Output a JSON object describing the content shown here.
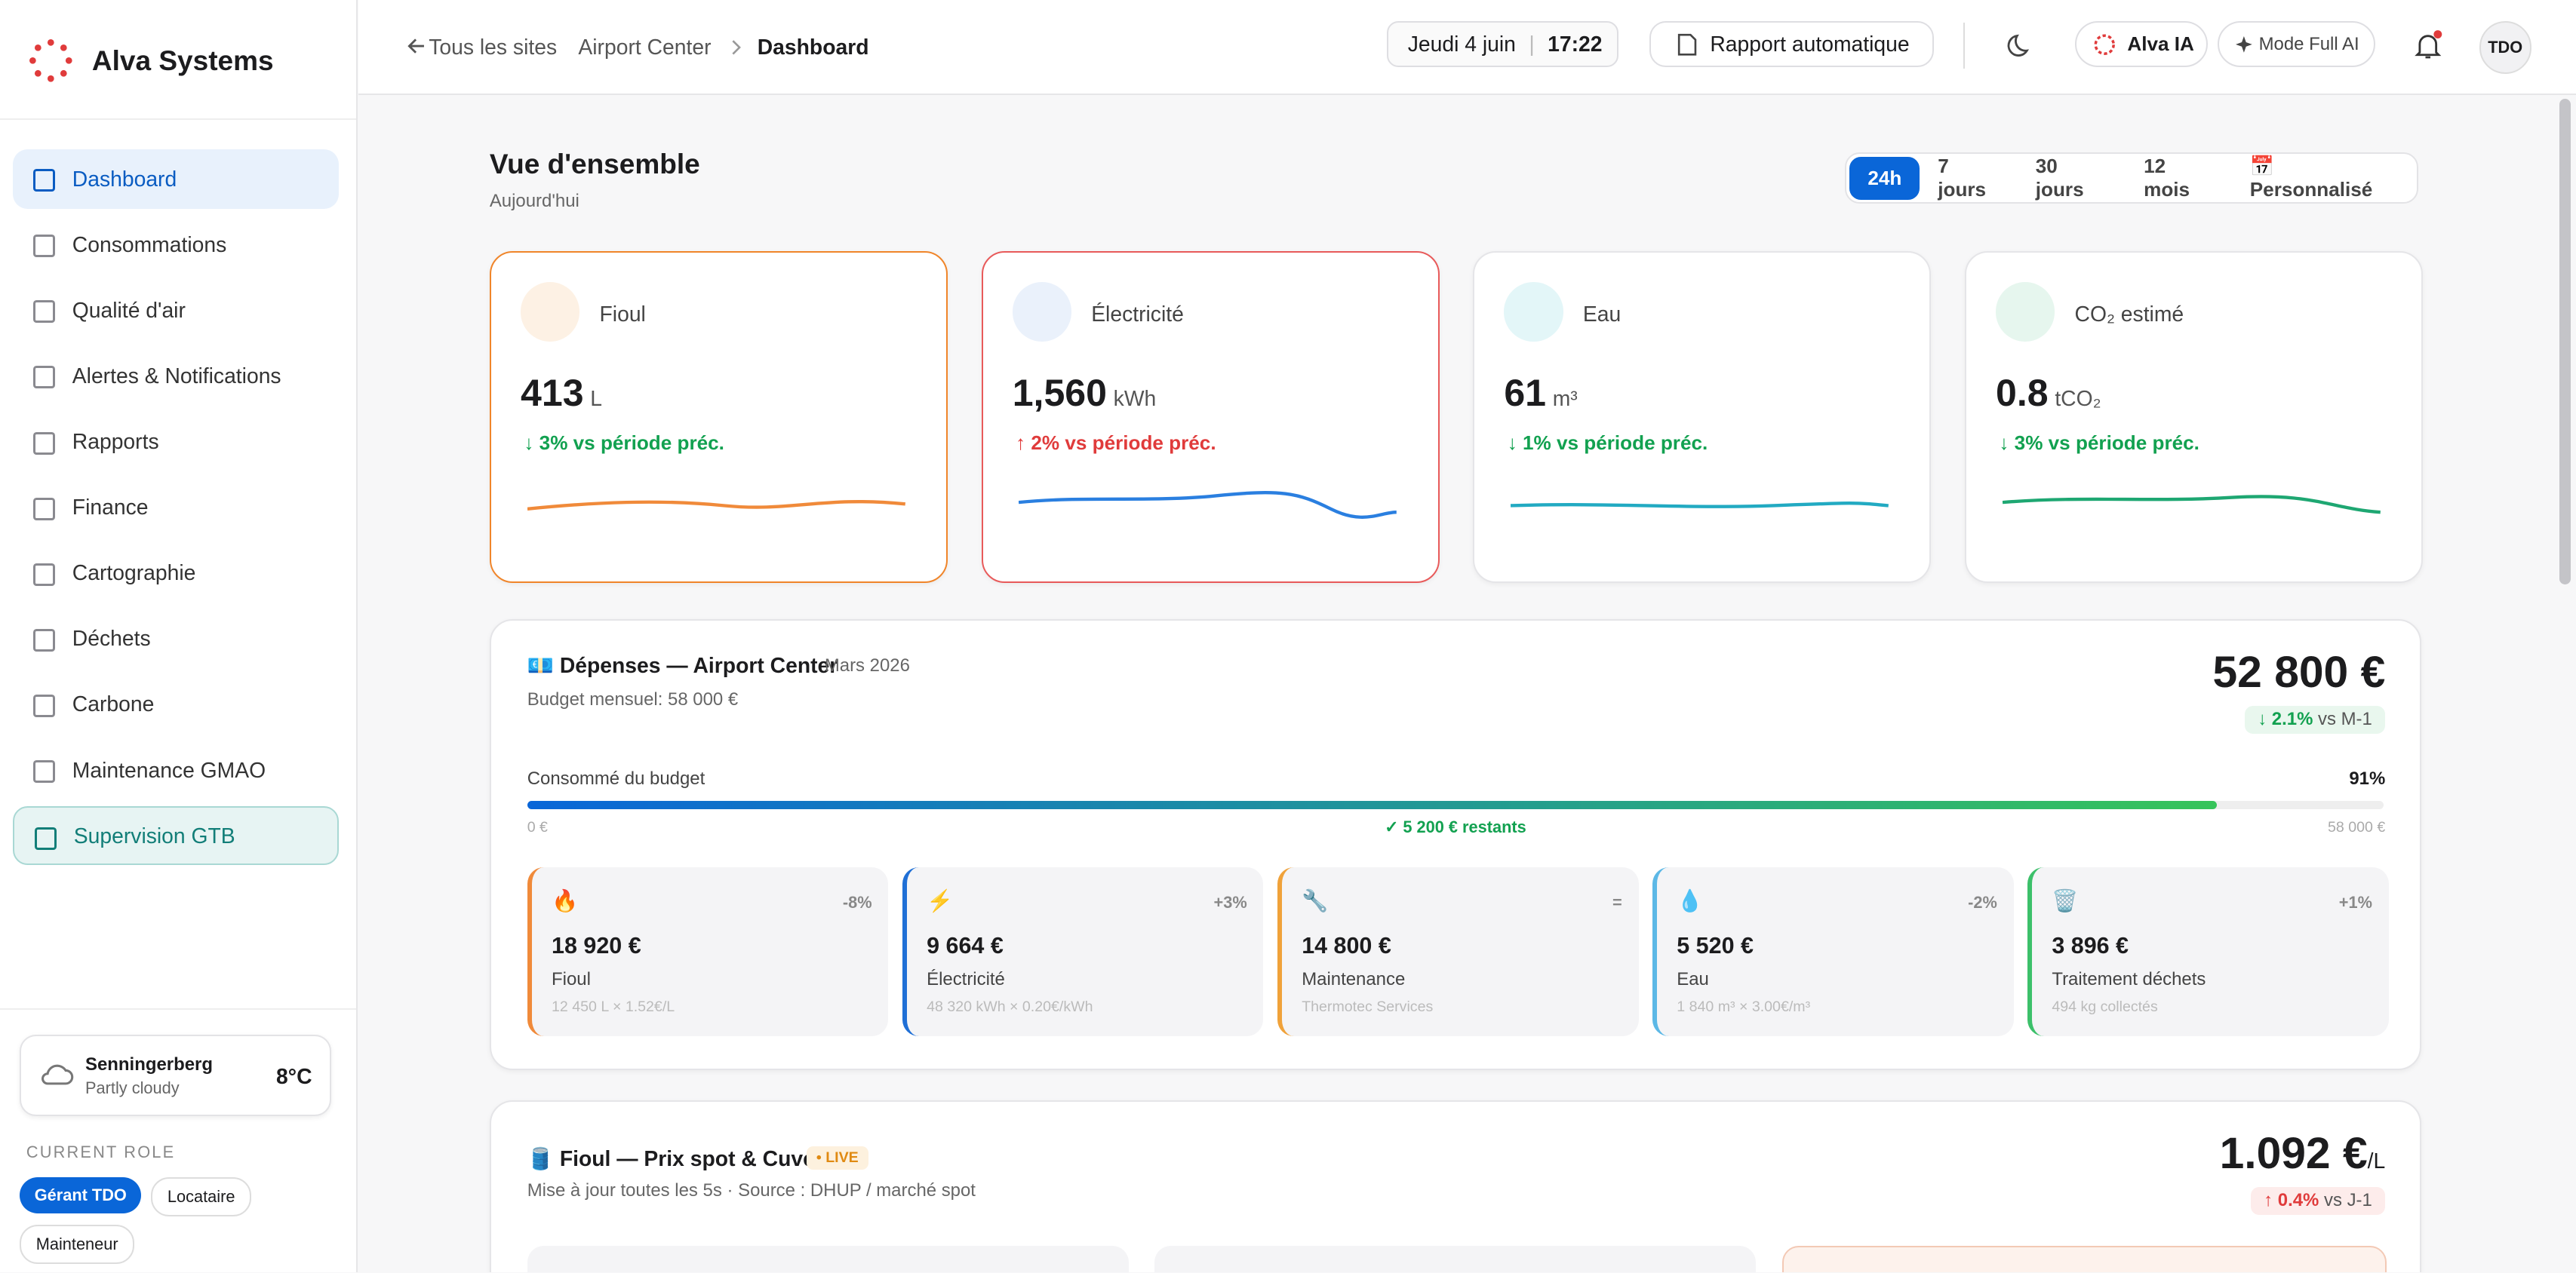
{
  "brand": "Alva Systems",
  "nav": [
    "Dashboard",
    "Consommations",
    "Qualité d'air",
    "Alertes & Notifications",
    "Rapports",
    "Finance",
    "Cartographie",
    "Déchets",
    "Carbone",
    "Maintenance GMAO",
    "Supervision GTB"
  ],
  "breadcrumb": {
    "back": "Tous les sites",
    "site": "Airport Center",
    "page": "Dashboard"
  },
  "header": {
    "date": "Jeudi 4 juin",
    "time": "17:22",
    "report": "Rapport automatique",
    "ai": "Alva IA",
    "full_ai": "Mode Full AI",
    "user": "TDO"
  },
  "weather": {
    "city": "Senningerberg",
    "condition": "Partly cloudy",
    "temp": "8°C"
  },
  "role": {
    "label": "CURRENT ROLE",
    "roles": [
      "Gérant TDO",
      "Locataire",
      "Mainteneur"
    ]
  },
  "overview": {
    "title": "Vue d'ensemble",
    "subtitle": "Aujourd'hui",
    "ranges": [
      "24h",
      "7 jours",
      "30 jours",
      "12 mois",
      "📅 Personnalisé"
    ]
  },
  "kpis": [
    {
      "name": "Fioul",
      "value": "413",
      "unit": "L",
      "delta": "↓ 3% vs période préc."
    },
    {
      "name": "Électricité",
      "value": "1,560",
      "unit": "kWh",
      "delta": "↑ 2% vs période préc."
    },
    {
      "name": "Eau",
      "value": "61",
      "unit": "m³",
      "delta": "↓ 1% vs période préc."
    },
    {
      "name": "CO₂ estimé",
      "value": "0.8",
      "unit": "tCO₂",
      "delta": "↓ 3% vs période préc."
    }
  ],
  "expenses": {
    "title": "💶 Dépenses — Airport Center",
    "period": "Mars 2026",
    "budget": "Budget mensuel: 58 000 €",
    "total": "52 800 €",
    "delta": "↓ 2.1%",
    "delta_ref": "vs M-1",
    "consumed_label": "Consommé du budget",
    "used": {
      "value": 91,
      "label": "91%"
    },
    "min": "0 €",
    "max": "58 000 €",
    "remaining": "✓ 5 200 € restants",
    "items": [
      {
        "icon": "🔥",
        "change": "-8%",
        "amount": "18 920 €",
        "name": "Fioul",
        "detail": "12 450 L × 1.52€/L"
      },
      {
        "icon": "⚡",
        "change": "+3%",
        "amount": "9 664 €",
        "name": "Électricité",
        "detail": "48 320 kWh × 0.20€/kWh"
      },
      {
        "icon": "🔧",
        "change": "=",
        "amount": "14 800 €",
        "name": "Maintenance",
        "detail": "Thermotec Services"
      },
      {
        "icon": "💧",
        "change": "-2%",
        "amount": "5 520 €",
        "name": "Eau",
        "detail": "1 840 m³ × 3.00€/m³"
      },
      {
        "icon": "🗑️",
        "change": "+1%",
        "amount": "3 896 €",
        "name": "Traitement déchets",
        "detail": "494 kg collectés"
      }
    ]
  },
  "fuel": {
    "title": "🛢️ Fioul — Prix spot & Cuves",
    "live": "LIVE",
    "subtitle": "Mise à jour toutes les 5s · Source : DHUP / marché spot",
    "price": "1.092 €",
    "unit": "/L",
    "delta": "↑ 0.4%",
    "delta_ref": "vs J-1"
  }
}
